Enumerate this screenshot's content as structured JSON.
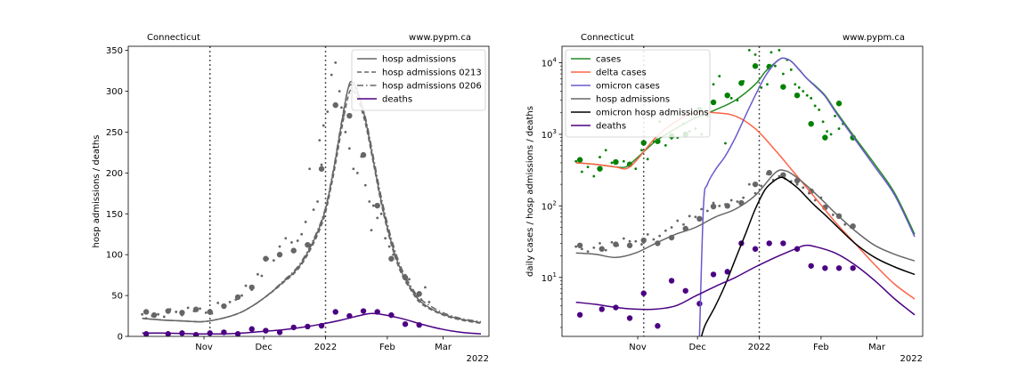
{
  "chart_data": [
    {
      "type": "line",
      "title_left": "Connecticut",
      "title_right": "www.pypm.ca",
      "xlabel": "",
      "ylabel": "hosp admissions / deaths",
      "year_label": "2022",
      "x_ticks": [
        {
          "label": "Nov",
          "day": 31
        },
        {
          "label": "Dec",
          "day": 61
        },
        {
          "label": "2022",
          "day": 92
        },
        {
          "label": "Feb",
          "day": 123
        },
        {
          "label": "Mar",
          "day": 151
        }
      ],
      "xlim": [
        -7,
        174
      ],
      "ylim": [
        0,
        355
      ],
      "y_ticks": [
        0,
        50,
        100,
        150,
        200,
        250,
        300,
        350
      ],
      "vlines": [
        34,
        92
      ],
      "legend_position": "top-right",
      "series": [
        {
          "name": "hosp admissions",
          "style": "solid",
          "color": "#666666",
          "x": [
            0,
            10,
            20,
            30,
            40,
            50,
            60,
            70,
            80,
            90,
            95,
            100,
            103,
            105,
            108,
            112,
            116,
            120,
            125,
            130,
            135,
            140,
            150,
            160,
            170
          ],
          "y": [
            22,
            20,
            19,
            18,
            22,
            30,
            45,
            65,
            90,
            140,
            190,
            260,
            300,
            312,
            300,
            265,
            215,
            165,
            115,
            80,
            58,
            42,
            28,
            21,
            17
          ]
        },
        {
          "name": "hosp admissions 0213",
          "style": "dashed",
          "color": "#666666",
          "x": [
            0,
            10,
            20,
            30,
            40,
            50,
            60,
            70,
            80,
            90,
            95,
            100,
            103,
            105,
            108,
            112,
            116,
            120,
            125,
            130,
            135,
            140,
            150,
            160,
            170
          ],
          "y": [
            22,
            20,
            19,
            18,
            22,
            30,
            45,
            64,
            88,
            136,
            185,
            252,
            290,
            302,
            292,
            260,
            212,
            162,
            112,
            77,
            56,
            40,
            27,
            20,
            16
          ]
        },
        {
          "name": "hosp admissions 0206",
          "style": "dashdot",
          "color": "#666666",
          "x": [
            0,
            10,
            20,
            30,
            40,
            50,
            60,
            70,
            80,
            90,
            95,
            100,
            103,
            105,
            108,
            112,
            116,
            120,
            125,
            130,
            135,
            140,
            150,
            160,
            170
          ],
          "y": [
            22,
            20,
            19,
            18,
            22,
            30,
            45,
            66,
            92,
            142,
            192,
            262,
            300,
            308,
            298,
            268,
            220,
            170,
            120,
            84,
            61,
            45,
            30,
            22,
            18
          ]
        },
        {
          "name": "deaths",
          "style": "solid",
          "color": "#4b0082",
          "x": [
            0,
            10,
            20,
            30,
            40,
            50,
            60,
            70,
            80,
            90,
            100,
            110,
            115,
            120,
            130,
            140,
            150,
            160,
            170
          ],
          "y": [
            4,
            4,
            3.5,
            3,
            3,
            4,
            6,
            8,
            11,
            15,
            20,
            26,
            28,
            27,
            22,
            15,
            9,
            5,
            3
          ]
        }
      ],
      "scatter_small": {
        "color": "#666666",
        "x": [
          0,
          2,
          5,
          8,
          11,
          14,
          17,
          20,
          23,
          26,
          29,
          32,
          35,
          38,
          41,
          44,
          47,
          50,
          52,
          55,
          58,
          60,
          63,
          66,
          69,
          72,
          75,
          78,
          80,
          82,
          84,
          86,
          88,
          89,
          90,
          91,
          93,
          95,
          97,
          99,
          100,
          101,
          102,
          104,
          106,
          108,
          110,
          112,
          114,
          115,
          116,
          118,
          120,
          122,
          124,
          126,
          128,
          130,
          132,
          134,
          136,
          138,
          140,
          142,
          144
        ],
        "y": [
          27,
          22,
          25,
          27,
          24,
          33,
          30,
          26,
          35,
          31,
          34,
          29,
          28,
          41,
          38,
          42,
          45,
          50,
          62,
          57,
          76,
          74,
          95,
          93,
          110,
          120,
          115,
          117,
          125,
          140,
          205,
          155,
          165,
          240,
          210,
          258,
          275,
          320,
          335,
          300,
          280,
          270,
          250,
          230,
          205,
          200,
          220,
          185,
          165,
          130,
          160,
          145,
          150,
          120,
          110,
          100,
          95,
          80,
          75,
          70,
          55,
          50,
          45,
          60,
          42
        ]
      },
      "scatter_large_gray": {
        "color": "#666666",
        "x": [
          2,
          6,
          13,
          20,
          27,
          34,
          41,
          48,
          55,
          62,
          69,
          76,
          83,
          90,
          97,
          104,
          111,
          118,
          125,
          132,
          139
        ],
        "y": [
          30,
          26,
          31,
          29,
          33,
          30,
          37,
          48,
          60,
          95,
          100,
          105,
          112,
          205,
          283,
          270,
          222,
          160,
          95,
          72,
          52
        ]
      },
      "scatter_purple": {
        "color": "#4b0082",
        "x": [
          2,
          13,
          20,
          27,
          34,
          41,
          48,
          55,
          62,
          69,
          76,
          83,
          90,
          97,
          104,
          111,
          118,
          125,
          132,
          139
        ],
        "y": [
          3,
          3,
          4,
          2,
          4,
          5,
          3,
          9,
          7,
          5,
          11,
          12,
          13,
          30,
          25,
          31,
          30,
          26,
          15,
          14
        ]
      }
    },
    {
      "type": "line",
      "scale_y": "log",
      "title_left": "Connecticut",
      "title_right": "www.pypm.ca",
      "xlabel": "",
      "ylabel": "daily cases / hosp admissions / deaths",
      "year_label": "2022",
      "x_ticks": [
        {
          "label": "Nov",
          "day": 31
        },
        {
          "label": "Dec",
          "day": 61
        },
        {
          "label": "2022",
          "day": 92
        },
        {
          "label": "Feb",
          "day": 123
        },
        {
          "label": "Mar",
          "day": 151
        }
      ],
      "xlim": [
        -7,
        174
      ],
      "ylim": [
        1.5,
        17000
      ],
      "y_ticks": [
        {
          "label": "10",
          "exp": "1",
          "value": 10
        },
        {
          "label": "10",
          "exp": "2",
          "value": 100
        },
        {
          "label": "10",
          "exp": "3",
          "value": 1000
        },
        {
          "label": "10",
          "exp": "4",
          "value": 10000
        }
      ],
      "vlines": [
        34,
        92
      ],
      "legend_position": "top-left",
      "series": [
        {
          "name": "cases",
          "color": "#228b22",
          "x": [
            0,
            10,
            20,
            25,
            30,
            40,
            50,
            60,
            70,
            80,
            90,
            95,
            100,
            103,
            105,
            108,
            112,
            116,
            120,
            125,
            130,
            140,
            150,
            160,
            170
          ],
          "y": [
            400,
            380,
            350,
            350,
            450,
            800,
            1200,
            1700,
            2200,
            3000,
            5000,
            7500,
            10000,
            11500,
            11500,
            10500,
            8000,
            6000,
            4800,
            3500,
            2200,
            900,
            380,
            150,
            40
          ]
        },
        {
          "name": "delta cases",
          "color": "#ff6347",
          "x": [
            0,
            10,
            20,
            25,
            30,
            40,
            50,
            60,
            70,
            80,
            90,
            100,
            110,
            120,
            130,
            140,
            150,
            160,
            170
          ],
          "y": [
            400,
            380,
            350,
            330,
            420,
            900,
            1500,
            2000,
            2000,
            1800,
            1200,
            600,
            280,
            130,
            60,
            30,
            15,
            8,
            5
          ]
        },
        {
          "name": "omicron cases",
          "color": "#6a5acd",
          "x": [
            62,
            64,
            66,
            70,
            75,
            80,
            85,
            90,
            95,
            100,
            103,
            105,
            108,
            112,
            116,
            120,
            125,
            130,
            140,
            150,
            160,
            170
          ],
          "y": [
            1.5,
            100,
            200,
            320,
            500,
            900,
            1800,
            3500,
            6500,
            10000,
            11500,
            11500,
            10500,
            8000,
            6000,
            4700,
            3400,
            2100,
            850,
            350,
            140,
            37
          ]
        },
        {
          "name": "hosp admissions",
          "color": "#666666",
          "x": [
            0,
            10,
            20,
            30,
            40,
            50,
            60,
            70,
            80,
            90,
            100,
            105,
            110,
            115,
            120,
            125,
            130,
            140,
            150,
            160,
            170
          ],
          "y": [
            22,
            21,
            19,
            22,
            30,
            40,
            50,
            70,
            90,
            140,
            290,
            310,
            260,
            200,
            150,
            110,
            80,
            45,
            28,
            21,
            17
          ]
        },
        {
          "name": "omicron hosp admissions",
          "color": "#000000",
          "x": [
            63,
            65,
            70,
            75,
            80,
            85,
            90,
            95,
            100,
            103,
            105,
            108,
            112,
            116,
            120,
            125,
            130,
            140,
            150,
            160,
            170
          ],
          "y": [
            1.5,
            2.2,
            4,
            8,
            18,
            40,
            90,
            170,
            230,
            250,
            240,
            210,
            170,
            130,
            100,
            75,
            55,
            30,
            19,
            14,
            11
          ]
        },
        {
          "name": "deaths",
          "color": "#4b0082",
          "x": [
            0,
            10,
            20,
            30,
            40,
            50,
            60,
            70,
            80,
            90,
            100,
            110,
            115,
            120,
            130,
            140,
            150,
            160,
            170
          ],
          "y": [
            4.5,
            4.2,
            3.8,
            3.6,
            3.6,
            4,
            5.5,
            7.5,
            10,
            14,
            19,
            25,
            28,
            27,
            22,
            15,
            9,
            5,
            3
          ]
        }
      ],
      "scatter_green_small": {
        "color": "#008000",
        "x": [
          0,
          3,
          6,
          9,
          12,
          15,
          18,
          21,
          24,
          27,
          30,
          33,
          36,
          39,
          42,
          45,
          48,
          51,
          54,
          57,
          60,
          63,
          66,
          69,
          72,
          75,
          78,
          81,
          84,
          87,
          90,
          93,
          96,
          98,
          100,
          102,
          104,
          106,
          108,
          110,
          112,
          114,
          116,
          118,
          120,
          122,
          124,
          126,
          128,
          130,
          132,
          134
        ],
        "y": [
          420,
          300,
          350,
          260,
          480,
          600,
          400,
          2200,
          420,
          360,
          330,
          600,
          450,
          800,
          1500,
          700,
          880,
          900,
          1400,
          1100,
          1200,
          1000,
          1800,
          5000,
          6500,
          750,
          3200,
          3000,
          5500,
          15000,
          13000,
          4500,
          5000,
          14000,
          9000,
          15000,
          7000,
          11000,
          8000,
          5000,
          4500,
          4000,
          3500,
          3200,
          2500,
          2200,
          1500,
          1100,
          1000,
          1800,
          1200,
          1400
        ]
      },
      "scatter_green_large": {
        "color": "#008000",
        "x": [
          2,
          12,
          20,
          27,
          34,
          41,
          48,
          55,
          62,
          69,
          76,
          83,
          90,
          97,
          104,
          111,
          118,
          125,
          132,
          139
        ],
        "y": [
          440,
          330,
          410,
          380,
          760,
          800,
          950,
          1000,
          2200,
          2800,
          3500,
          5200,
          9000,
          8800,
          4600,
          3500,
          1400,
          900,
          2700,
          900
        ]
      },
      "scatter_gray_small": {
        "color": "#666666",
        "x": [
          0,
          3,
          6,
          9,
          12,
          15,
          18,
          21,
          24,
          27,
          30,
          33,
          36,
          39,
          42,
          45,
          48,
          51,
          54,
          57,
          60,
          63,
          66,
          69,
          72,
          75,
          78,
          81,
          84,
          87,
          90,
          93,
          96,
          99,
          102,
          105,
          108,
          111,
          114,
          117,
          120,
          123,
          126,
          129,
          132,
          135,
          138
        ],
        "y": [
          27,
          25,
          23,
          26,
          30,
          24,
          31,
          28,
          35,
          32,
          32,
          29,
          40,
          34,
          38,
          45,
          50,
          62,
          55,
          72,
          70,
          90,
          85,
          110,
          100,
          105,
          120,
          115,
          130,
          200,
          150,
          190,
          280,
          230,
          260,
          240,
          220,
          200,
          180,
          150,
          120,
          130,
          100,
          75,
          70,
          55,
          50
        ]
      },
      "scatter_gray_large": {
        "color": "#666666",
        "x": [
          2,
          13,
          20,
          27,
          34,
          41,
          48,
          55,
          62,
          69,
          76,
          83,
          90,
          97,
          104,
          111,
          118,
          125,
          132,
          139
        ],
        "y": [
          28,
          25,
          29,
          28,
          33,
          30,
          36,
          48,
          66,
          98,
          100,
          110,
          200,
          290,
          270,
          225,
          160,
          95,
          72,
          52
        ]
      },
      "scatter_purple": {
        "color": "#4b0082",
        "x": [
          2,
          13,
          20,
          27,
          34,
          41,
          48,
          55,
          62,
          69,
          76,
          83,
          90,
          97,
          104,
          111,
          118,
          125,
          132,
          139
        ],
        "y": [
          3,
          3.6,
          3.8,
          2.7,
          6,
          2.1,
          9,
          6.5,
          4.3,
          11,
          12,
          30,
          25,
          30,
          30,
          25,
          14.5,
          13.5,
          13.5,
          13.5
        ]
      }
    }
  ]
}
